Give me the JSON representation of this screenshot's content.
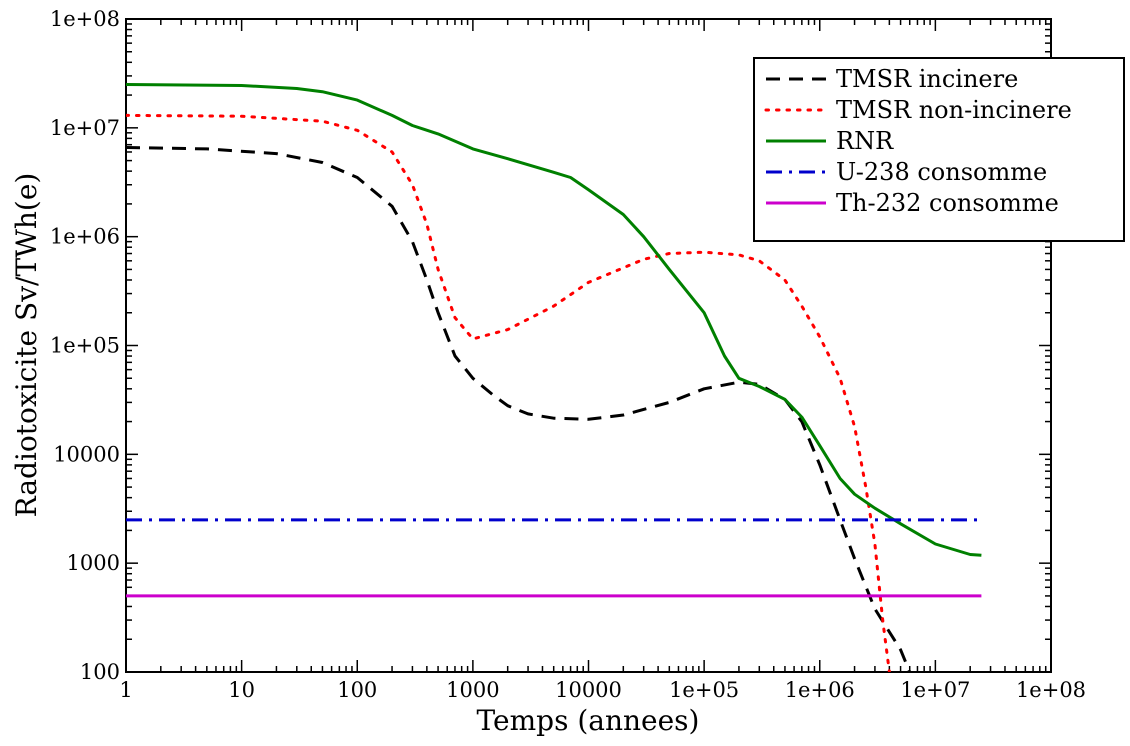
{
  "chart_data": {
    "type": "line",
    "xlabel": "Temps (annees)",
    "ylabel": "Radiotoxicite Sv/TWh(e)",
    "x_scale": "log",
    "y_scale": "log",
    "xlim": [
      1,
      100000000
    ],
    "ylim": [
      100,
      100000000
    ],
    "x_ticks": [
      {
        "value": 1,
        "label": "1"
      },
      {
        "value": 10,
        "label": "10"
      },
      {
        "value": 100,
        "label": "100"
      },
      {
        "value": 1000,
        "label": "1000"
      },
      {
        "value": 10000,
        "label": "10000"
      },
      {
        "value": 100000,
        "label": "1e+05"
      },
      {
        "value": 1000000,
        "label": "1e+06"
      },
      {
        "value": 10000000,
        "label": "1e+07"
      },
      {
        "value": 100000000,
        "label": "1e+08"
      }
    ],
    "y_ticks": [
      {
        "value": 100,
        "label": "100"
      },
      {
        "value": 1000,
        "label": "1000"
      },
      {
        "value": 10000,
        "label": "10000"
      },
      {
        "value": 100000,
        "label": "1e+05"
      },
      {
        "value": 1000000,
        "label": "1e+06"
      },
      {
        "value": 10000000,
        "label": "1e+07"
      },
      {
        "value": 100000000,
        "label": "1e+08"
      }
    ],
    "grid": false,
    "legend_position": "top-right",
    "series": [
      {
        "name": "TMSR incinere",
        "color": "#000000",
        "dash": "dashed",
        "points": [
          [
            1,
            6600000
          ],
          [
            5,
            6400000
          ],
          [
            20,
            5800000
          ],
          [
            50,
            4800000
          ],
          [
            100,
            3500000
          ],
          [
            200,
            1900000
          ],
          [
            300,
            900000
          ],
          [
            400,
            400000
          ],
          [
            500,
            200000
          ],
          [
            700,
            80000
          ],
          [
            1000,
            50000
          ],
          [
            1500,
            35000
          ],
          [
            2000,
            28000
          ],
          [
            3000,
            23500
          ],
          [
            5000,
            21500
          ],
          [
            10000,
            21000
          ],
          [
            20000,
            23000
          ],
          [
            50000,
            30000
          ],
          [
            100000,
            40000
          ],
          [
            200000,
            46000
          ],
          [
            300000,
            44000
          ],
          [
            500000,
            32000
          ],
          [
            700000,
            20000
          ],
          [
            1000000,
            8000
          ],
          [
            1500000,
            2500
          ],
          [
            2000000,
            1100
          ],
          [
            3000000,
            380
          ],
          [
            5000000,
            160
          ],
          [
            6000000,
            100
          ]
        ]
      },
      {
        "name": "TMSR non-incinere",
        "color": "#ff0000",
        "dash": "dotted",
        "points": [
          [
            1,
            13000000
          ],
          [
            10,
            12800000
          ],
          [
            50,
            11500000
          ],
          [
            100,
            9500000
          ],
          [
            200,
            6000000
          ],
          [
            300,
            3000000
          ],
          [
            400,
            1300000
          ],
          [
            500,
            500000
          ],
          [
            700,
            180000
          ],
          [
            1000,
            115000
          ],
          [
            2000,
            140000
          ],
          [
            5000,
            230000
          ],
          [
            10000,
            380000
          ],
          [
            30000,
            620000
          ],
          [
            50000,
            700000
          ],
          [
            100000,
            720000
          ],
          [
            200000,
            680000
          ],
          [
            300000,
            600000
          ],
          [
            500000,
            400000
          ],
          [
            700000,
            230000
          ],
          [
            1000000,
            120000
          ],
          [
            1500000,
            50000
          ],
          [
            2000000,
            18000
          ],
          [
            2500000,
            5000
          ],
          [
            3000000,
            1500
          ],
          [
            3500000,
            300
          ],
          [
            4000000,
            100
          ]
        ]
      },
      {
        "name": "RNR",
        "color": "#008000",
        "dash": "solid",
        "points": [
          [
            1,
            25000000
          ],
          [
            10,
            24500000
          ],
          [
            30,
            23000000
          ],
          [
            50,
            21500000
          ],
          [
            100,
            18000000
          ],
          [
            200,
            13000000
          ],
          [
            300,
            10500000
          ],
          [
            500,
            8800000
          ],
          [
            1000,
            6400000
          ],
          [
            2000,
            5200000
          ],
          [
            5000,
            3900000
          ],
          [
            7000,
            3500000
          ],
          [
            10000,
            2700000
          ],
          [
            20000,
            1600000
          ],
          [
            30000,
            1000000
          ],
          [
            50000,
            500000
          ],
          [
            100000,
            200000
          ],
          [
            150000,
            80000
          ],
          [
            200000,
            50000
          ],
          [
            300000,
            42000
          ],
          [
            500000,
            32000
          ],
          [
            700000,
            22000
          ],
          [
            1000000,
            12000
          ],
          [
            1500000,
            6000
          ],
          [
            2000000,
            4300
          ],
          [
            3000000,
            3200
          ],
          [
            5000000,
            2300
          ],
          [
            10000000,
            1500
          ],
          [
            20000000,
            1200
          ],
          [
            25000000,
            1180
          ]
        ]
      },
      {
        "name": "U-238 consomme",
        "color": "#0000cc",
        "dash": "dashdot",
        "points": [
          [
            1,
            2500
          ],
          [
            25000000,
            2500
          ]
        ]
      },
      {
        "name": "Th-232 consomme",
        "color": "#cc00cc",
        "dash": "solid",
        "points": [
          [
            1,
            500
          ],
          [
            25000000,
            500
          ]
        ]
      }
    ]
  }
}
